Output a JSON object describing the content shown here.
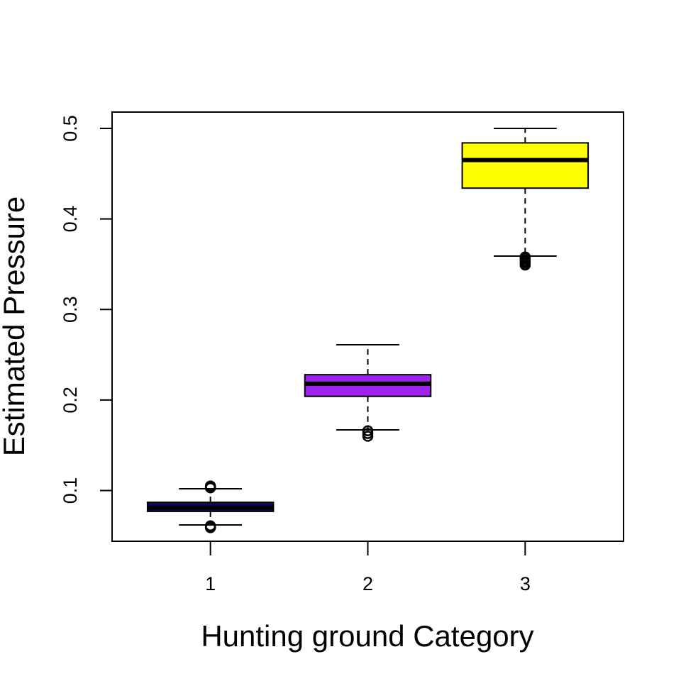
{
  "chart_data": {
    "type": "boxplot",
    "title": "",
    "xlabel": "Hunting ground Category",
    "ylabel": "Estimated Pressure",
    "ylim": [
      0.044,
      0.518
    ],
    "yticks": [
      "0.1",
      "0.2",
      "0.3",
      "0.4",
      "0.5"
    ],
    "categories": [
      "1",
      "2",
      "3"
    ],
    "grid": false,
    "boxes": [
      {
        "category": "1",
        "fill": "#0a0a5e",
        "whisker_low": 0.062,
        "q1": 0.077,
        "median": 0.081,
        "q3": 0.087,
        "whisker_high": 0.102,
        "outliers": [
          0.059,
          0.06,
          0.061,
          0.103,
          0.104,
          0.105
        ]
      },
      {
        "category": "2",
        "fill": "#a020f0",
        "whisker_low": 0.167,
        "q1": 0.204,
        "median": 0.218,
        "q3": 0.228,
        "whisker_high": 0.261,
        "outliers": [
          0.16,
          0.163,
          0.166
        ]
      },
      {
        "category": "3",
        "fill": "#ffff00",
        "whisker_low": 0.359,
        "q1": 0.434,
        "median": 0.465,
        "q3": 0.484,
        "whisker_high": 0.5,
        "outliers": [
          0.349,
          0.351,
          0.353,
          0.355,
          0.357,
          0.358
        ]
      }
    ]
  }
}
